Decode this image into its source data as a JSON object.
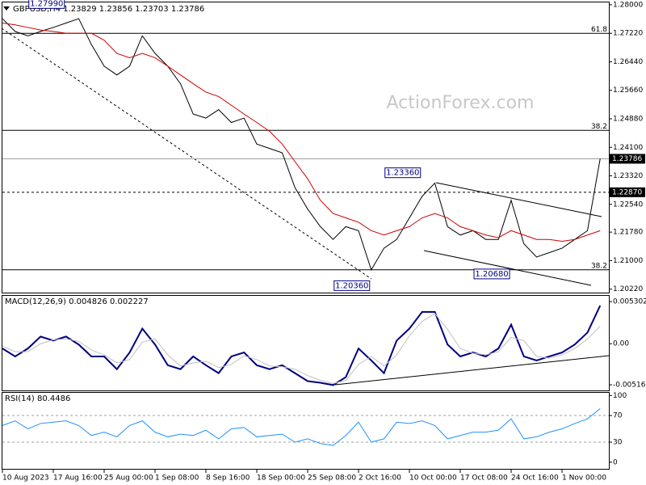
{
  "chart_data": [
    {
      "type": "line",
      "title": "GBPUSD,H4  1.23829 1.23856 1.23703 1.23786",
      "watermark": "ActionForex.com",
      "ylim": [
        1.20125,
        1.28064
      ],
      "yticks": [
        {
          "value": 1.28,
          "label": "1.28000"
        },
        {
          "value": 1.2722,
          "label": "1.27220"
        },
        {
          "value": 1.2644,
          "label": "1.26440"
        },
        {
          "value": 1.2566,
          "label": "1.25660"
        },
        {
          "value": 1.2488,
          "label": "1.24880"
        },
        {
          "value": 1.241,
          "label": "1.24100"
        },
        {
          "value": 1.2332,
          "label": "1.23320"
        },
        {
          "value": 1.2254,
          "label": "1.22540"
        },
        {
          "value": 1.2178,
          "label": "1.21780"
        },
        {
          "value": 1.21,
          "label": "1.21000"
        },
        {
          "value": 1.2022,
          "label": "1.20220"
        }
      ],
      "series": [
        {
          "color": "#000000",
          "values": [
            1.2762,
            1.2727,
            1.2715,
            1.2727,
            1.2738,
            1.275,
            1.2762,
            1.2691,
            1.2632,
            1.2608,
            1.2632,
            1.2715,
            1.2667,
            1.2632,
            1.2584,
            1.2501,
            1.249,
            1.2513,
            1.2478,
            1.249,
            1.2419,
            1.2407,
            1.2395,
            1.23,
            1.2241,
            1.2193,
            1.2158,
            1.2193,
            1.2182,
            1.2075,
            1.2134,
            1.2158,
            1.2217,
            1.2276,
            1.2312,
            1.2193,
            1.217,
            1.2182,
            1.2158,
            1.2158,
            1.2265,
            1.2146,
            1.211,
            1.2122,
            1.2134,
            1.2158,
            1.2182,
            1.2379
          ]
        },
        {
          "color": "#cc0000",
          "values": [
            1.275,
            1.2745,
            1.2738,
            1.2731,
            1.2727,
            1.2722,
            1.2722,
            1.2722,
            1.2703,
            1.2667,
            1.2655,
            1.2667,
            1.2655,
            1.2632,
            1.2608,
            1.2584,
            1.2561,
            1.2549,
            1.2525,
            1.2501,
            1.2478,
            1.2454,
            1.2419,
            1.2371,
            1.2324,
            1.2265,
            1.2229,
            1.2217,
            1.2205,
            1.2182,
            1.217,
            1.2182,
            1.2193,
            1.2217,
            1.2229,
            1.2217,
            1.2193,
            1.2182,
            1.217,
            1.2163,
            1.2182,
            1.217,
            1.2158,
            1.2158,
            1.2153,
            1.2158,
            1.217,
            1.2182
          ]
        }
      ],
      "levels": [
        {
          "value": 1.27218,
          "label": "61.8",
          "color": "#000000"
        },
        {
          "value": 1.24564,
          "label": "38.2",
          "color": "#000000"
        },
        {
          "value": 1.20749,
          "label": "38.2",
          "color": "#000000"
        },
        {
          "value": 1.2287,
          "label": "1.22870",
          "color": "#000000",
          "dash": true,
          "boxed": true
        },
        {
          "value": 1.23786,
          "label": "1.23786",
          "color": "#a0a0a0",
          "boxed": true
        }
      ],
      "annotations": [
        {
          "label": "1.27990",
          "value": 1.2799,
          "index": 5
        },
        {
          "label": "1.23360",
          "value": 1.2336,
          "index": 33
        },
        {
          "label": "1.20360",
          "value": 1.2036,
          "index": 29
        },
        {
          "label": "1.20680",
          "value": 1.2068,
          "index": 40
        }
      ]
    },
    {
      "type": "line",
      "title": "MACD(12,26,9) 0.004826 0.002227",
      "ylim": [
        -0.00587,
        0.00602
      ],
      "yticks": [
        0.005302,
        {
          "value": 0,
          "label": "0.00"
        },
        -0.005165
      ],
      "series": [
        {
          "color": "#000080",
          "width": 2,
          "values": [
            -0.0006,
            -0.0016,
            -0.0006,
            0.0009,
            0.0004,
            0.0009,
            -0.0001,
            -0.0016,
            -0.0016,
            -0.0032,
            -0.0011,
            0.0019,
            -0.0001,
            -0.0027,
            -0.0032,
            -0.0016,
            -0.0027,
            -0.0037,
            -0.0016,
            -0.0011,
            -0.0027,
            -0.0032,
            -0.0027,
            -0.0037,
            -0.0047,
            -0.0049,
            -0.0052,
            -0.0042,
            -0.0006,
            -0.0021,
            -0.0037,
            0.0004,
            0.0019,
            0.004,
            0.004,
            -0.0001,
            -0.0016,
            -0.0011,
            -0.0016,
            -0.0006,
            0.0024,
            -0.0016,
            -0.0021,
            -0.0016,
            -0.0011,
            -0.0001,
            0.0014,
            0.0048
          ]
        },
        {
          "color": "#c0c0c0",
          "width": 1,
          "values": [
            -0.0003,
            -0.001,
            -0.001,
            0.0,
            0.0005,
            0.0006,
            0.0003,
            -0.0008,
            -0.0014,
            -0.0024,
            -0.002,
            0.0002,
            0.0006,
            -0.0014,
            -0.0028,
            -0.0024,
            -0.0022,
            -0.003,
            -0.0026,
            -0.0015,
            -0.002,
            -0.0028,
            -0.0029,
            -0.0032,
            -0.004,
            -0.0046,
            -0.005,
            -0.0046,
            -0.0026,
            -0.0016,
            -0.0028,
            -0.0014,
            0.001,
            0.0028,
            0.0038,
            0.0018,
            -0.0006,
            -0.0012,
            -0.0014,
            -0.001,
            0.0008,
            0.0004,
            -0.0016,
            -0.0018,
            -0.0014,
            -0.0006,
            0.0006,
            0.0022
          ]
        }
      ]
    },
    {
      "type": "line",
      "title": "RSI(14) 80.4486",
      "ylim": [
        -10,
        104
      ],
      "yticks": [
        100,
        70,
        30,
        0
      ],
      "levels": [
        {
          "value": 70,
          "color": "#a0a0a0",
          "dash": true
        },
        {
          "value": 30,
          "color": "#a0a0a0",
          "dash": true
        }
      ],
      "categories": [
        "10 Aug 2023",
        null,
        null,
        null,
        "17 Aug 16:00",
        null,
        null,
        null,
        "25 Aug 00:00",
        null,
        null,
        null,
        "1 Sep 08:00",
        null,
        null,
        null,
        "8 Sep 16:00",
        null,
        null,
        null,
        "18 Sep 00:00",
        null,
        null,
        null,
        "25 Sep 08:00",
        null,
        null,
        null,
        "2 Oct 16:00",
        null,
        null,
        null,
        "10 Oct 00:00",
        null,
        null,
        null,
        "17 Oct 08:00",
        null,
        null,
        null,
        "24 Oct 16:00",
        null,
        null,
        null,
        "1 Nov 00:00",
        null,
        null,
        null
      ],
      "series": [
        {
          "color": "#1e90ff",
          "width": 1,
          "values": [
            55,
            62,
            50,
            58,
            60,
            62,
            55,
            40,
            45,
            38,
            55,
            62,
            45,
            38,
            42,
            40,
            48,
            35,
            50,
            52,
            38,
            40,
            42,
            30,
            35,
            28,
            25,
            40,
            60,
            30,
            35,
            60,
            58,
            62,
            55,
            35,
            40,
            45,
            45,
            48,
            65,
            35,
            38,
            45,
            50,
            58,
            65,
            80.4
          ]
        }
      ]
    }
  ]
}
